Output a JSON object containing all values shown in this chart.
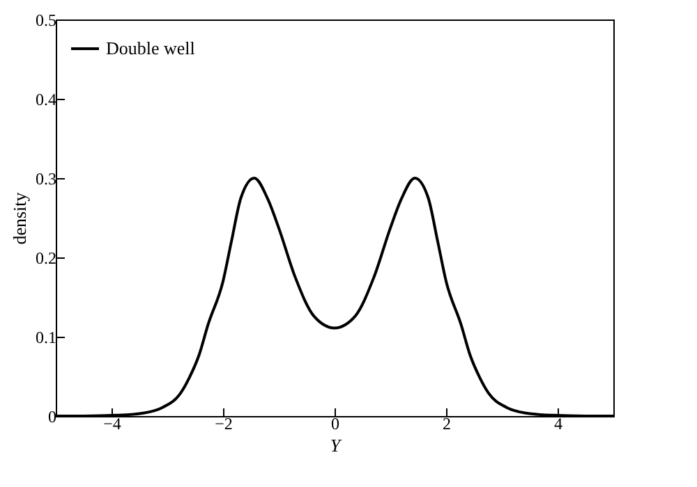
{
  "chart_data": {
    "type": "line",
    "xlabel": "Y",
    "ylabel": "density",
    "xlim": [
      -5,
      5
    ],
    "ylim": [
      0,
      0.5
    ],
    "xticks": [
      -4,
      -2,
      0,
      2,
      4
    ],
    "yticks": [
      0,
      0.1,
      0.2,
      0.3,
      0.4,
      0.5
    ],
    "legend": "top left",
    "grid": false,
    "line_style": "solid",
    "marker": "none",
    "series": [
      {
        "name": "Double well",
        "color": "#000000",
        "x": [
          -5,
          -4.5,
          -3.9,
          -3.41,
          -3.08,
          -2.76,
          -2.6,
          -2.43,
          -2.27,
          -2,
          -1.85,
          -1.68,
          -1.44,
          -1.2,
          -1,
          -0.7,
          -0.37,
          0,
          0.37,
          0.7,
          1,
          1.2,
          1.44,
          1.68,
          1.85,
          2,
          2.27,
          2.43,
          2.6,
          2.76,
          3.08,
          3.41,
          3.9,
          4.5,
          5
        ],
        "values": [
          0,
          0,
          0.001,
          0.004,
          0.011,
          0.029,
          0.049,
          0.077,
          0.115,
          0.17,
          0.22,
          0.275,
          0.3,
          0.274,
          0.237,
          0.174,
          0.126,
          0.111,
          0.126,
          0.174,
          0.237,
          0.274,
          0.3,
          0.275,
          0.22,
          0.17,
          0.115,
          0.077,
          0.049,
          0.029,
          0.011,
          0.004,
          0.001,
          0,
          0
        ]
      }
    ]
  }
}
